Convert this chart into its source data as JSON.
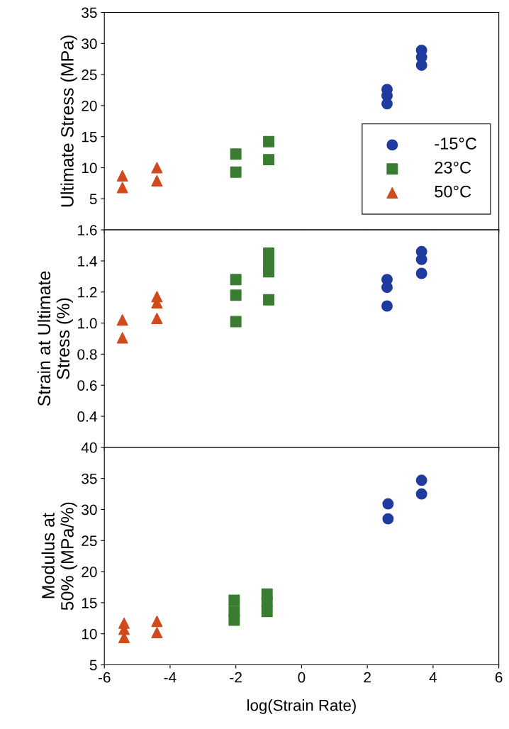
{
  "chart_data": [
    {
      "type": "scatter",
      "ylabel": "Ultimate Stress (MPa)",
      "xlim": [
        -6,
        6
      ],
      "xticks": [
        -6,
        -4,
        -2,
        0,
        2,
        4,
        6
      ],
      "ylim": [
        0,
        35
      ],
      "yticks": [
        5,
        10,
        15,
        20,
        25,
        30,
        35
      ],
      "tick_labels": "y",
      "grid": false,
      "legend": "right",
      "series": [
        {
          "name": "-15°C",
          "color": "#1f3b9e",
          "marker": "circle",
          "x": [
            2.6,
            2.6,
            2.6,
            3.65,
            3.65,
            3.65
          ],
          "values": [
            22.6,
            21.6,
            20.3,
            28.9,
            27.8,
            26.5
          ]
        },
        {
          "name": "23°C",
          "color": "#3a7d32",
          "marker": "square",
          "x": [
            -2.0,
            -2.0,
            -1.0,
            -1.0
          ],
          "values": [
            12.2,
            9.3,
            14.2,
            11.3
          ]
        },
        {
          "name": "50°C",
          "color": "#cf4a1c",
          "marker": "triangle",
          "x": [
            -5.45,
            -5.45,
            -4.4,
            -4.4
          ],
          "values": [
            8.7,
            6.8,
            10.0,
            7.9
          ]
        }
      ]
    },
    {
      "type": "scatter",
      "ylabel": "Strain at Ultimate\nStress (%)",
      "xlim": [
        -6,
        6
      ],
      "xticks": [
        -6,
        -4,
        -2,
        0,
        2,
        4,
        6
      ],
      "ylim": [
        0.2,
        1.6
      ],
      "yticks": [
        0.4,
        0.6,
        0.8,
        {
          "value": 1,
          "label": "1.0"
        },
        1.2,
        1.4,
        1.6
      ],
      "tick_labels": "y",
      "grid": false,
      "series": [
        {
          "color": "#1f3b9e",
          "marker": "circle",
          "x": [
            2.6,
            2.6,
            2.6,
            3.65,
            3.65,
            3.65
          ],
          "values": [
            1.28,
            1.23,
            1.11,
            1.46,
            1.41,
            1.32
          ]
        },
        {
          "color": "#3a7d32",
          "marker": "square",
          "x": [
            -2.0,
            -2.0,
            -2.0,
            -1.0,
            -1.0,
            -1.0,
            -1.0
          ],
          "values": [
            1.28,
            1.18,
            1.01,
            1.45,
            1.39,
            1.33,
            1.15
          ]
        },
        {
          "color": "#cf4a1c",
          "marker": "triangle",
          "x": [
            -5.45,
            -5.45,
            -4.4,
            -4.4,
            -4.4
          ],
          "values": [
            1.02,
            0.905,
            1.17,
            1.13,
            1.03
          ]
        }
      ]
    },
    {
      "type": "scatter",
      "ylabel": "Modulus at\n50% (MPa/%)",
      "xlabel": "log(Strain Rate)",
      "xlim": [
        -6,
        6
      ],
      "xticks": [
        -6,
        -4,
        -2,
        0,
        2,
        4,
        6
      ],
      "ylim": [
        5,
        40
      ],
      "yticks": [
        5,
        10,
        15,
        20,
        25,
        30,
        35,
        40
      ],
      "grid": false,
      "series": [
        {
          "color": "#1f3b9e",
          "marker": "circle",
          "x": [
            2.63,
            2.63,
            3.65,
            3.65
          ],
          "values": [
            30.9,
            28.5,
            34.7,
            32.5
          ]
        },
        {
          "color": "#3a7d32",
          "marker": "square",
          "x": [
            -2.05,
            -2.05,
            -2.05,
            -1.05,
            -1.05,
            -1.05
          ],
          "values": [
            15.4,
            13.6,
            12.2,
            16.4,
            15.1,
            13.6
          ]
        },
        {
          "color": "#cf4a1c",
          "marker": "triangle",
          "x": [
            -5.4,
            -5.4,
            -5.4,
            -4.4,
            -4.4
          ],
          "values": [
            11.7,
            10.7,
            9.4,
            12.0,
            10.2
          ]
        }
      ]
    }
  ]
}
